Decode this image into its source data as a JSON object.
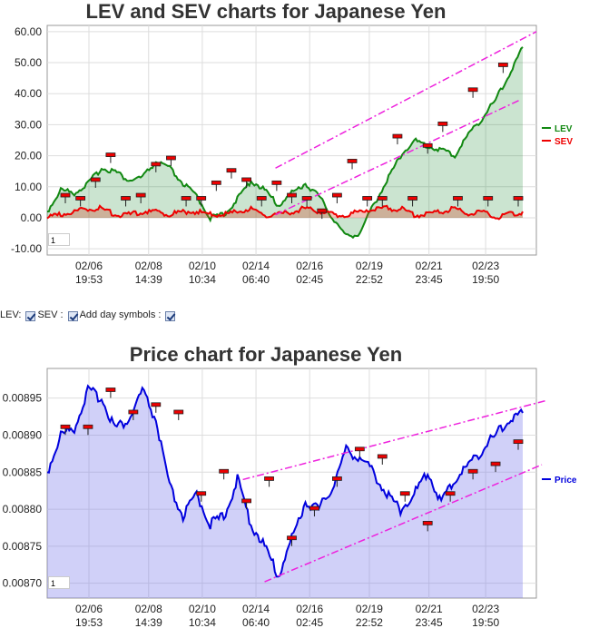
{
  "controls": {
    "lev_label": "LEV:",
    "sev_label": "SEV :",
    "add_day_label": "Add day symbols :"
  },
  "chart_data": [
    {
      "type": "line",
      "title": "LEV and SEV charts for Japanese Yen",
      "ylim": [
        -12,
        62
      ],
      "yticks": [
        "60.00",
        "50.00",
        "40.00",
        "30.00",
        "20.00",
        "10.00",
        "0.00",
        "-10.00"
      ],
      "ytick_values": [
        60,
        50,
        40,
        30,
        20,
        10,
        0,
        -10
      ],
      "xticks": [
        [
          "02/06",
          "19:53"
        ],
        [
          "02/08",
          "14:39"
        ],
        [
          "02/10",
          "10:34"
        ],
        [
          "02/14",
          "06:40"
        ],
        [
          "02/16",
          "02:45"
        ],
        [
          "02/19",
          "22:52"
        ],
        [
          "02/21",
          "23:45"
        ],
        [
          "02/23",
          "19:50"
        ]
      ],
      "x": [
        0,
        0.25,
        0.5,
        0.75,
        1,
        1.25,
        1.5,
        1.75,
        2,
        2.25,
        2.5,
        2.75,
        3,
        3.25,
        3.5,
        3.75,
        4,
        4.25,
        4.5,
        4.75,
        5,
        5.25,
        5.5,
        5.75,
        6,
        6.25,
        6.5,
        6.75,
        7,
        7.25,
        7.5,
        7.75,
        8,
        8.25,
        8.5,
        8.75
      ],
      "series": [
        {
          "name": "LEV",
          "color": "#118811",
          "values": [
            2,
            9,
            8,
            11,
            16,
            15,
            12,
            13,
            18,
            16,
            11,
            7,
            0,
            1,
            6,
            12,
            9,
            4,
            8,
            11,
            7,
            0,
            -6,
            -5,
            4,
            12,
            20,
            25,
            23,
            22,
            20,
            27,
            32,
            38,
            46,
            55
          ]
        },
        {
          "name": "SEV",
          "color": "#ee0000",
          "values": [
            0,
            1,
            2,
            3,
            3,
            1,
            1,
            2,
            2,
            1,
            2,
            2,
            1,
            1,
            2,
            3,
            1,
            1,
            2,
            3,
            2,
            1,
            1,
            2,
            3,
            3,
            3,
            1,
            1,
            2,
            3,
            1,
            2,
            0,
            1,
            2
          ]
        }
      ],
      "day_symbols": [
        7,
        6,
        12,
        20,
        6,
        7,
        17,
        19,
        6,
        6,
        11,
        15,
        12,
        6,
        11,
        7,
        6,
        2,
        7,
        18,
        6,
        6,
        26,
        6,
        23,
        30,
        6,
        41,
        6,
        49,
        6
      ],
      "trendlines": [
        [
          [
            4.2,
            16
          ],
          [
            9,
            60
          ]
        ],
        [
          [
            4.2,
            1
          ],
          [
            8.7,
            38
          ]
        ]
      ]
    },
    {
      "type": "line",
      "title": "Price chart for Japanese Yen",
      "ylim": [
        0.00868,
        0.00899
      ],
      "yticks": [
        "0.00895",
        "0.00890",
        "0.00885",
        "0.00880",
        "0.00875",
        "0.00870"
      ],
      "ytick_values": [
        0.00895,
        0.0089,
        0.00885,
        0.0088,
        0.00875,
        0.0087
      ],
      "xticks": [
        [
          "02/06",
          "19:53"
        ],
        [
          "02/08",
          "14:39"
        ],
        [
          "02/10",
          "10:34"
        ],
        [
          "02/14",
          "06:40"
        ],
        [
          "02/16",
          "02:45"
        ],
        [
          "02/19",
          "22:52"
        ],
        [
          "02/21",
          "23:45"
        ],
        [
          "02/23",
          "19:50"
        ]
      ],
      "x": [
        0,
        0.25,
        0.5,
        0.75,
        1,
        1.25,
        1.5,
        1.75,
        2,
        2.25,
        2.5,
        2.75,
        3,
        3.25,
        3.5,
        3.75,
        4,
        4.25,
        4.5,
        4.75,
        5,
        5.25,
        5.5,
        5.75,
        6,
        6.25,
        6.5,
        6.75,
        7,
        7.25,
        7.5,
        7.75,
        8,
        8.25,
        8.5,
        8.75
      ],
      "series": [
        {
          "name": "Price",
          "color": "#0000dd",
          "values": [
            0.00885,
            0.0089,
            0.00891,
            0.00896,
            0.00895,
            0.00891,
            0.00892,
            0.00896,
            0.00892,
            0.00883,
            0.00879,
            0.00882,
            0.00878,
            0.00879,
            0.00884,
            0.00878,
            0.00875,
            0.00871,
            0.00876,
            0.00881,
            0.0088,
            0.00883,
            0.00888,
            0.00887,
            0.00885,
            0.00882,
            0.0088,
            0.00882,
            0.00885,
            0.00881,
            0.00884,
            0.00886,
            0.00888,
            0.0089,
            0.00892,
            0.00893
          ]
        }
      ],
      "day_symbols": [
        0.00891,
        0.00891,
        0.00896,
        0.00893,
        0.00894,
        0.00893,
        0.00882,
        0.00885,
        0.00881,
        0.00884,
        0.00876,
        0.0088,
        0.00884,
        0.00888,
        0.00887,
        0.00882,
        0.00878,
        0.00882,
        0.00885,
        0.00886,
        0.00889
      ],
      "trendlines": [
        [
          [
            3.6,
            0.00884
          ],
          [
            9.2,
            0.008947
          ]
        ],
        [
          [
            4,
            0.008702
          ],
          [
            9.1,
            0.00886
          ]
        ]
      ]
    }
  ],
  "inputs": {
    "value1": "1",
    "value2": "1"
  }
}
